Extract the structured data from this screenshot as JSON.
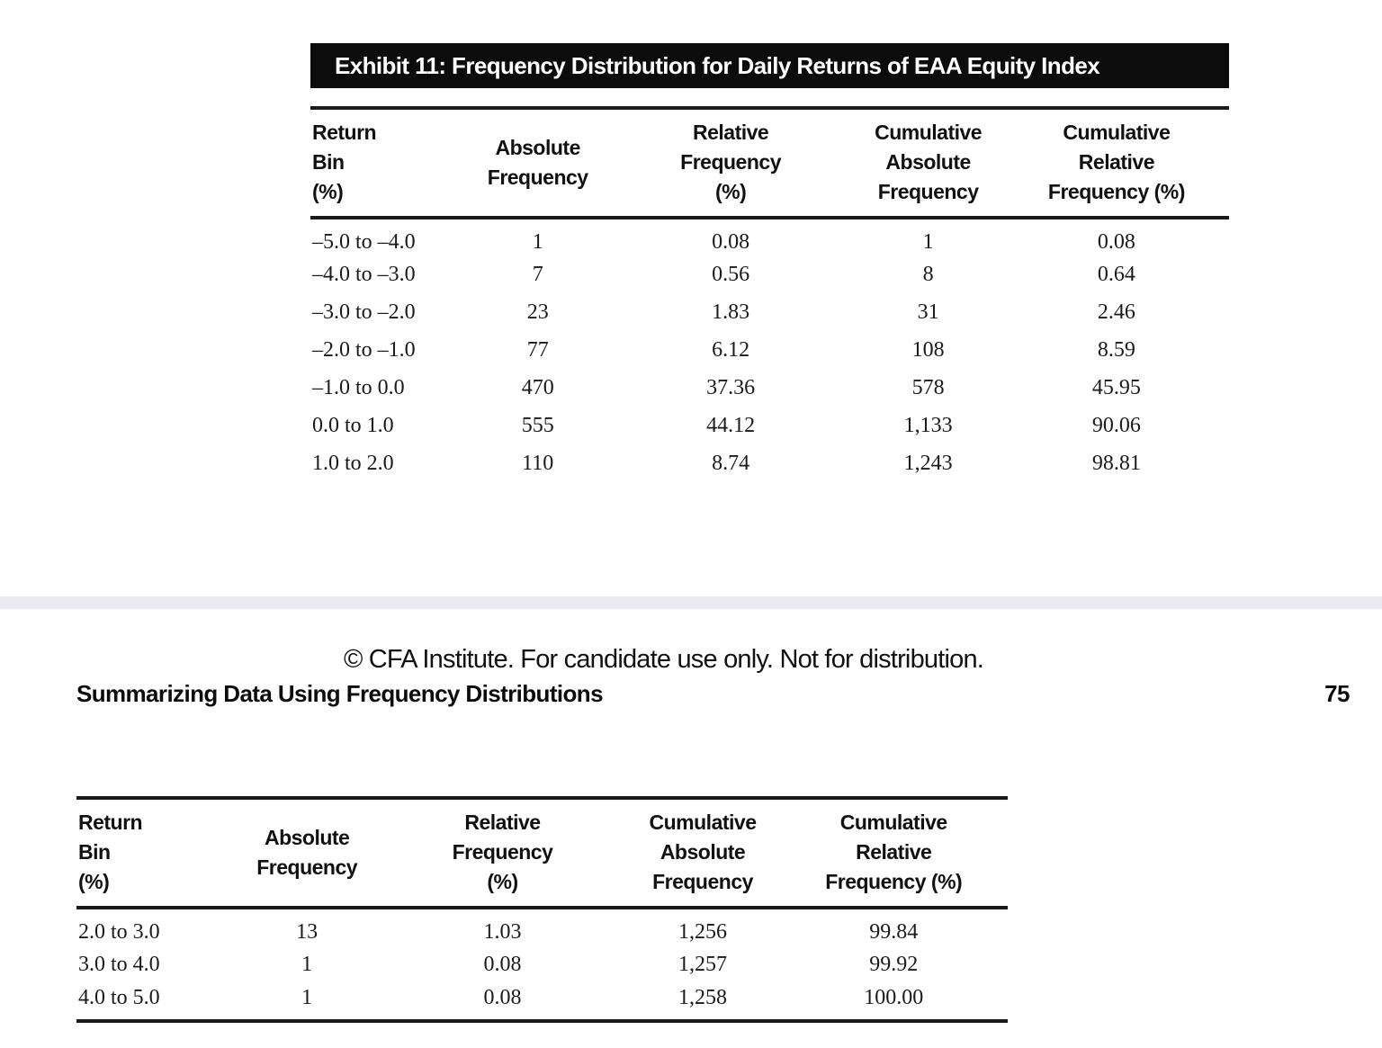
{
  "exhibit": {
    "title": "Exhibit 11: Frequency Distribution for Daily Returns of EAA Equity Index"
  },
  "table": {
    "headers": [
      "Return\nBin\n(%)",
      "Absolute\nFrequency",
      "Relative\nFrequency\n(%)",
      "Cumulative\nAbsolute\nFrequency",
      "Cumulative\nRelative\nFrequency (%)"
    ],
    "page1_rows": [
      [
        "–5.0 to –4.0",
        "1",
        "0.08",
        "1",
        "0.08"
      ],
      [
        "–4.0 to –3.0",
        "7",
        "0.56",
        "8",
        "0.64"
      ],
      [
        "–3.0 to –2.0",
        "23",
        "1.83",
        "31",
        "2.46"
      ],
      [
        "–2.0 to –1.0",
        "77",
        "6.12",
        "108",
        "8.59"
      ],
      [
        "–1.0 to 0.0",
        "470",
        "37.36",
        "578",
        "45.95"
      ],
      [
        "0.0 to 1.0",
        "555",
        "44.12",
        "1,133",
        "90.06"
      ],
      [
        "1.0 to 2.0",
        "110",
        "8.74",
        "1,243",
        "98.81"
      ]
    ],
    "page2_rows": [
      [
        "2.0 to 3.0",
        "13",
        "1.03",
        "1,256",
        "99.84"
      ],
      [
        "3.0 to 4.0",
        "1",
        "0.08",
        "1,257",
        "99.92"
      ],
      [
        "4.0 to 5.0",
        "1",
        "0.08",
        "1,258",
        "100.00"
      ]
    ]
  },
  "footer": {
    "copyright": "© CFA Institute. For candidate use only. Not for distribution.",
    "section_title": "Summarizing Data Using Frequency Distributions",
    "page_number": "75"
  },
  "colors": {
    "page_band": "#e9e9ef",
    "rule": "#1a1a1a",
    "exhibit_bar": "#0c0c0c"
  }
}
